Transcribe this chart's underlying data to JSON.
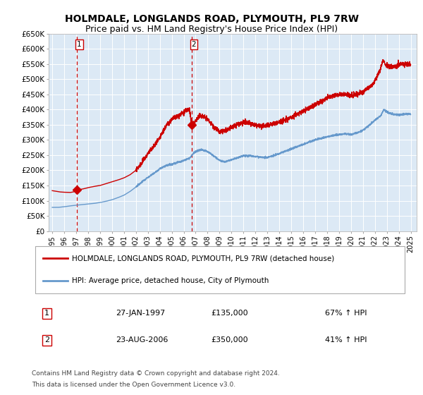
{
  "title": "HOLMDALE, LONGLANDS ROAD, PLYMOUTH, PL9 7RW",
  "subtitle": "Price paid vs. HM Land Registry's House Price Index (HPI)",
  "title_fontsize": 10,
  "subtitle_fontsize": 9,
  "background_color": "#ffffff",
  "plot_bg_color": "#dce9f5",
  "grid_color": "#ffffff",
  "red_line_color": "#cc0000",
  "blue_line_color": "#6699cc",
  "vline_color": "#cc0000",
  "ylim": [
    0,
    650000
  ],
  "yticks": [
    0,
    50000,
    100000,
    150000,
    200000,
    250000,
    300000,
    350000,
    400000,
    450000,
    500000,
    550000,
    600000,
    650000
  ],
  "ytick_labels": [
    "£0",
    "£50K",
    "£100K",
    "£150K",
    "£200K",
    "£250K",
    "£300K",
    "£350K",
    "£400K",
    "£450K",
    "£500K",
    "£550K",
    "£600K",
    "£650K"
  ],
  "xlim_start": 1994.7,
  "xlim_end": 2025.5,
  "xtick_years": [
    1995,
    1996,
    1997,
    1998,
    1999,
    2000,
    2001,
    2002,
    2003,
    2004,
    2005,
    2006,
    2007,
    2008,
    2009,
    2010,
    2011,
    2012,
    2013,
    2014,
    2015,
    2016,
    2017,
    2018,
    2019,
    2020,
    2021,
    2022,
    2023,
    2024,
    2025
  ],
  "sale1_x": 1997.07,
  "sale1_y": 135000,
  "sale1_label": "1",
  "sale1_date": "27-JAN-1997",
  "sale1_price": "£135,000",
  "sale1_hpi": "67% ↑ HPI",
  "sale2_x": 2006.65,
  "sale2_y": 350000,
  "sale2_label": "2",
  "sale2_date": "23-AUG-2006",
  "sale2_price": "£350,000",
  "sale2_hpi": "41% ↑ HPI",
  "legend_red_label": "HOLMDALE, LONGLANDS ROAD, PLYMOUTH, PL9 7RW (detached house)",
  "legend_blue_label": "HPI: Average price, detached house, City of Plymouth",
  "footer_line1": "Contains HM Land Registry data © Crown copyright and database right 2024.",
  "footer_line2": "This data is licensed under the Open Government Licence v3.0.",
  "shaded_region_start": 1994.7,
  "shaded_region_end": 2006.65
}
